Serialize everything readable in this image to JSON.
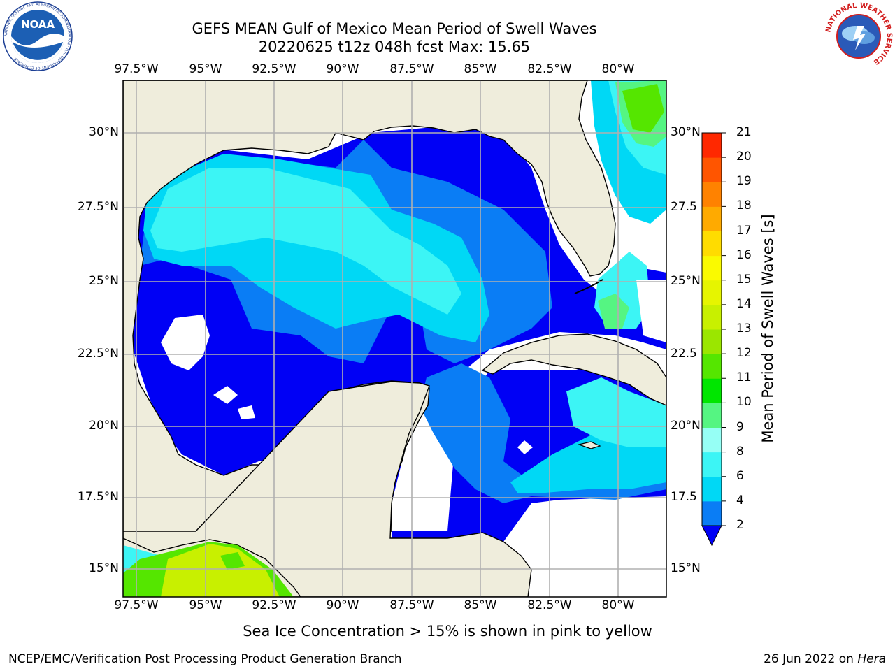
{
  "title": {
    "line1": "GEFS MEAN Gulf of Mexico Mean Period of Swell Waves",
    "line2": "20220625 t12z 048h fcst   Max: 15.65"
  },
  "logos": {
    "noaa": {
      "text": "NOAA",
      "ring_text": "NATIONAL OCEANIC AND ATMOSPHERIC ADMINISTRATION · U.S. DEPARTMENT OF COMMERCE"
    },
    "nws": {
      "ring_text": "NATIONAL WEATHER SERVICE"
    }
  },
  "map": {
    "lon_labels": [
      "97.5°W",
      "95°W",
      "92.5°W",
      "90°W",
      "87.5°W",
      "85°W",
      "82.5°W",
      "80°W"
    ],
    "lat_labels_left": [
      "30°N",
      "27.5°N",
      "25°N",
      "22.5°N",
      "20°N",
      "17.5°N",
      "15°N"
    ],
    "lat_labels_right": [
      "30°N",
      "27.5",
      "25°N",
      "22.5",
      "20°N",
      "17.5",
      "15°N"
    ],
    "land_color": "#efeddc",
    "nodata_color": "#ffffff",
    "grid_color": "#b0b0b0"
  },
  "colorbar": {
    "title": "Mean Period of Swell Waves [s]",
    "ticks": [
      "2",
      "4",
      "6",
      "8",
      "9",
      "10",
      "11",
      "12",
      "13",
      "14",
      "15",
      "16",
      "17",
      "18",
      "19",
      "20",
      "21"
    ],
    "colors": [
      "#0a7df5",
      "#00d8f5",
      "#3cf5f5",
      "#96fff5",
      "#55f582",
      "#00e600",
      "#55e600",
      "#9be600",
      "#c8f000",
      "#e6f500",
      "#fafa00",
      "#ffdc00",
      "#ffaa00",
      "#ff8200",
      "#ff5500",
      "#ff2800"
    ],
    "under_color": "#0000f5"
  },
  "footnote": "Sea Ice Concentration > 15% is shown in pink to yellow",
  "credit": "NCEP/EMC/Verification Post Processing Product Generation Branch",
  "date": {
    "prefix": "26 Jun 2022 on ",
    "machine": "Hera"
  }
}
